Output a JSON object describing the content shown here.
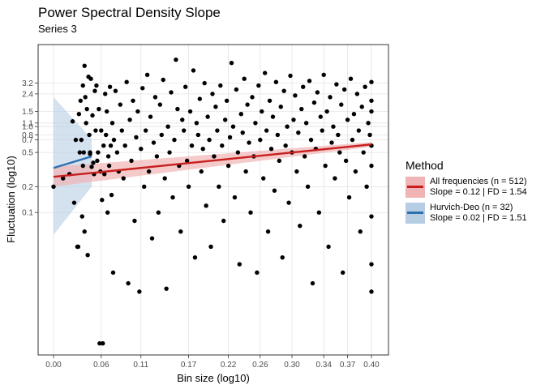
{
  "chart_data": {
    "type": "scatter",
    "title": "Power Spectral Density Slope",
    "subtitle": "Series 3",
    "xlabel": "Bin size (log10)",
    "ylabel": "Fluctuation (log10)",
    "x_ticks": [
      "0.00",
      "0.06",
      "0.11",
      "0.17",
      "0.22",
      "0.26",
      "0.30",
      "0.34",
      "0.37",
      "0.40"
    ],
    "x_tick_values": [
      0.0,
      0.06,
      0.11,
      0.17,
      0.22,
      0.26,
      0.3,
      0.34,
      0.37,
      0.4
    ],
    "y_ticks": [
      "3.2",
      "2.4",
      "1.5",
      "1.1",
      "1.0",
      "0.8",
      "0.7",
      "0.5",
      "0.2",
      "0.1"
    ],
    "y_tick_values": [
      3.2,
      2.4,
      1.5,
      1.1,
      1.0,
      0.8,
      0.7,
      0.5,
      0.2,
      0.1
    ],
    "points": [
      [
        0.0,
        0.2
      ],
      [
        0.012,
        0.25
      ],
      [
        0.02,
        0.28
      ],
      [
        0.024,
        1.15
      ],
      [
        0.026,
        0.13
      ],
      [
        0.028,
        0.7
      ],
      [
        0.03,
        0.04
      ],
      [
        0.031,
        0.04
      ],
      [
        0.032,
        1.4
      ],
      [
        0.033,
        0.5
      ],
      [
        0.034,
        2.0
      ],
      [
        0.035,
        0.7
      ],
      [
        0.036,
        0.09
      ],
      [
        0.037,
        0.35
      ],
      [
        0.037,
        3.0
      ],
      [
        0.038,
        0.5
      ],
      [
        0.039,
        5.1
      ],
      [
        0.039,
        0.06
      ],
      [
        0.04,
        2.2
      ],
      [
        0.041,
        1.1
      ],
      [
        0.042,
        1.6
      ],
      [
        0.043,
        0.032
      ],
      [
        0.044,
        3.8
      ],
      [
        0.045,
        0.8
      ],
      [
        0.046,
        0.5
      ],
      [
        0.046,
        0.48
      ],
      [
        0.047,
        3.6
      ],
      [
        0.048,
        0.34
      ],
      [
        0.049,
        1.35
      ],
      [
        0.05,
        0.38
      ],
      [
        0.051,
        0.28
      ],
      [
        0.052,
        2.6
      ],
      [
        0.053,
        0.9
      ],
      [
        0.054,
        3.0
      ],
      [
        0.055,
        0.4
      ],
      [
        0.056,
        0.5
      ],
      [
        0.057,
        1.6
      ],
      [
        0.058,
        0.003
      ],
      [
        0.059,
        0.3
      ],
      [
        0.06,
        0.9
      ],
      [
        0.061,
        0.14
      ],
      [
        0.062,
        0.003
      ],
      [
        0.063,
        0.6
      ],
      [
        0.064,
        0.28
      ],
      [
        0.065,
        2.4
      ],
      [
        0.066,
        0.8
      ],
      [
        0.067,
        1.5
      ],
      [
        0.068,
        0.1
      ],
      [
        0.069,
        0.45
      ],
      [
        0.07,
        0.35
      ],
      [
        0.071,
        2.9
      ],
      [
        0.072,
        0.6
      ],
      [
        0.073,
        0.16
      ],
      [
        0.074,
        1.1
      ],
      [
        0.075,
        0.02
      ],
      [
        0.076,
        0.7
      ],
      [
        0.078,
        2.6
      ],
      [
        0.08,
        0.5
      ],
      [
        0.082,
        0.3
      ],
      [
        0.084,
        1.8
      ],
      [
        0.086,
        0.9
      ],
      [
        0.088,
        0.25
      ],
      [
        0.09,
        0.6
      ],
      [
        0.092,
        3.3
      ],
      [
        0.094,
        0.015
      ],
      [
        0.096,
        1.2
      ],
      [
        0.098,
        0.4
      ],
      [
        0.1,
        2.0
      ],
      [
        0.102,
        0.08
      ],
      [
        0.104,
        0.75
      ],
      [
        0.106,
        1.5
      ],
      [
        0.108,
        0.012
      ],
      [
        0.11,
        0.55
      ],
      [
        0.112,
        2.8
      ],
      [
        0.114,
        0.2
      ],
      [
        0.116,
        0.9
      ],
      [
        0.118,
        4.0
      ],
      [
        0.12,
        0.3
      ],
      [
        0.122,
        1.3
      ],
      [
        0.124,
        0.05
      ],
      [
        0.126,
        0.65
      ],
      [
        0.128,
        2.2
      ],
      [
        0.13,
        0.45
      ],
      [
        0.132,
        0.1
      ],
      [
        0.134,
        1.8
      ],
      [
        0.136,
        0.8
      ],
      [
        0.138,
        3.5
      ],
      [
        0.14,
        0.25
      ],
      [
        0.142,
        0.013
      ],
      [
        0.144,
        1.0
      ],
      [
        0.146,
        0.5
      ],
      [
        0.148,
        2.5
      ],
      [
        0.15,
        0.15
      ],
      [
        0.152,
        0.7
      ],
      [
        0.154,
        6.0
      ],
      [
        0.156,
        1.6
      ],
      [
        0.158,
        0.35
      ],
      [
        0.16,
        0.06
      ],
      [
        0.162,
        1.2
      ],
      [
        0.164,
        0.9
      ],
      [
        0.166,
        2.9
      ],
      [
        0.168,
        0.4
      ],
      [
        0.17,
        0.2
      ],
      [
        0.172,
        1.5
      ],
      [
        0.174,
        0.6
      ],
      [
        0.176,
        4.5
      ],
      [
        0.178,
        0.03
      ],
      [
        0.18,
        1.1
      ],
      [
        0.182,
        0.8
      ],
      [
        0.184,
        2.1
      ],
      [
        0.186,
        0.3
      ],
      [
        0.188,
        0.55
      ],
      [
        0.19,
        3.2
      ],
      [
        0.192,
        0.12
      ],
      [
        0.194,
        1.3
      ],
      [
        0.196,
        0.7
      ],
      [
        0.198,
        0.04
      ],
      [
        0.2,
        2.4
      ],
      [
        0.202,
        0.45
      ],
      [
        0.204,
        1.7
      ],
      [
        0.206,
        0.9
      ],
      [
        0.208,
        0.2
      ],
      [
        0.21,
        3.0
      ],
      [
        0.212,
        0.6
      ],
      [
        0.214,
        0.08
      ],
      [
        0.216,
        1.2
      ],
      [
        0.218,
        2.0
      ],
      [
        0.22,
        0.35
      ],
      [
        0.222,
        0.75
      ],
      [
        0.224,
        5.5
      ],
      [
        0.226,
        1.0
      ],
      [
        0.228,
        0.15
      ],
      [
        0.23,
        2.7
      ],
      [
        0.232,
        0.5
      ],
      [
        0.234,
        0.025
      ],
      [
        0.236,
        1.4
      ],
      [
        0.238,
        0.85
      ],
      [
        0.24,
        3.6
      ],
      [
        0.242,
        0.3
      ],
      [
        0.244,
        1.8
      ],
      [
        0.246,
        0.65
      ],
      [
        0.248,
        0.1
      ],
      [
        0.25,
        2.2
      ],
      [
        0.252,
        0.45
      ],
      [
        0.254,
        1.1
      ],
      [
        0.256,
        0.02
      ],
      [
        0.258,
        3.0
      ],
      [
        0.26,
        0.7
      ],
      [
        0.262,
        1.5
      ],
      [
        0.264,
        0.25
      ],
      [
        0.266,
        4.2
      ],
      [
        0.268,
        0.9
      ],
      [
        0.27,
        0.06
      ],
      [
        0.272,
        2.0
      ],
      [
        0.274,
        0.55
      ],
      [
        0.276,
        1.3
      ],
      [
        0.278,
        0.18
      ],
      [
        0.28,
        3.3
      ],
      [
        0.282,
        0.8
      ],
      [
        0.284,
        0.4
      ],
      [
        0.286,
        1.7
      ],
      [
        0.288,
        0.03
      ],
      [
        0.29,
        2.6
      ],
      [
        0.292,
        0.6
      ],
      [
        0.294,
        1.0
      ],
      [
        0.296,
        0.13
      ],
      [
        0.298,
        3.9
      ],
      [
        0.3,
        0.5
      ],
      [
        0.302,
        1.2
      ],
      [
        0.304,
        2.3
      ],
      [
        0.306,
        0.3
      ],
      [
        0.308,
        0.85
      ],
      [
        0.31,
        0.07
      ],
      [
        0.312,
        1.6
      ],
      [
        0.314,
        2.9
      ],
      [
        0.316,
        0.45
      ],
      [
        0.318,
        1.1
      ],
      [
        0.32,
        0.2
      ],
      [
        0.322,
        3.4
      ],
      [
        0.324,
        0.7
      ],
      [
        0.326,
        0.015
      ],
      [
        0.328,
        1.9
      ],
      [
        0.33,
        0.55
      ],
      [
        0.332,
        2.5
      ],
      [
        0.334,
        0.1
      ],
      [
        0.336,
        1.3
      ],
      [
        0.338,
        0.9
      ],
      [
        0.34,
        4.0
      ],
      [
        0.342,
        0.35
      ],
      [
        0.344,
        1.5
      ],
      [
        0.346,
        0.04
      ],
      [
        0.348,
        2.2
      ],
      [
        0.35,
        0.65
      ],
      [
        0.352,
        1.0
      ],
      [
        0.354,
        0.25
      ],
      [
        0.356,
        3.1
      ],
      [
        0.358,
        0.8
      ],
      [
        0.36,
        0.5
      ],
      [
        0.362,
        1.8
      ],
      [
        0.364,
        0.02
      ],
      [
        0.366,
        2.7
      ],
      [
        0.368,
        0.4
      ],
      [
        0.37,
        1.2
      ],
      [
        0.372,
        0.15
      ],
      [
        0.374,
        3.6
      ],
      [
        0.376,
        0.7
      ],
      [
        0.378,
        1.4
      ],
      [
        0.38,
        0.3
      ],
      [
        0.382,
        2.4
      ],
      [
        0.384,
        0.9
      ],
      [
        0.386,
        0.06
      ],
      [
        0.388,
        1.7
      ],
      [
        0.39,
        0.5
      ],
      [
        0.392,
        2.9
      ],
      [
        0.394,
        0.2
      ],
      [
        0.396,
        1.1
      ],
      [
        0.398,
        0.8
      ],
      [
        0.4,
        3.3
      ],
      [
        0.4,
        0.6
      ],
      [
        0.4,
        0.012
      ],
      [
        0.4,
        1.5
      ],
      [
        0.4,
        2.0
      ],
      [
        0.4,
        0.35
      ],
      [
        0.4,
        0.09
      ],
      [
        0.4,
        0.025
      ]
    ],
    "series": [
      {
        "name": "All frequencies (n = 512)",
        "stats": "Slope = 0.12 | FD = 1.54",
        "color": "#c81e1e",
        "band_color": "#f0b4b4",
        "line": [
          [
            0.0,
            0.26
          ],
          [
            0.4,
            0.62
          ]
        ],
        "band_upper": [
          [
            0.0,
            0.34
          ],
          [
            0.4,
            0.66
          ]
        ],
        "band_lower": [
          [
            0.0,
            0.2
          ],
          [
            0.4,
            0.58
          ]
        ]
      },
      {
        "name": "Hurvich-Deo (n = 32)",
        "stats": "Slope = 0.02 | FD = 1.51",
        "color": "#2e6fb0",
        "band_color": "#b7cde3",
        "line": [
          [
            0.0,
            0.33
          ],
          [
            0.048,
            0.45
          ]
        ],
        "band_upper": [
          [
            0.0,
            2.2
          ],
          [
            0.048,
            0.72
          ]
        ],
        "band_lower": [
          [
            0.0,
            0.055
          ],
          [
            0.048,
            0.2
          ]
        ]
      }
    ],
    "legend": {
      "title": "Method",
      "position": "right"
    },
    "grid": true
  }
}
